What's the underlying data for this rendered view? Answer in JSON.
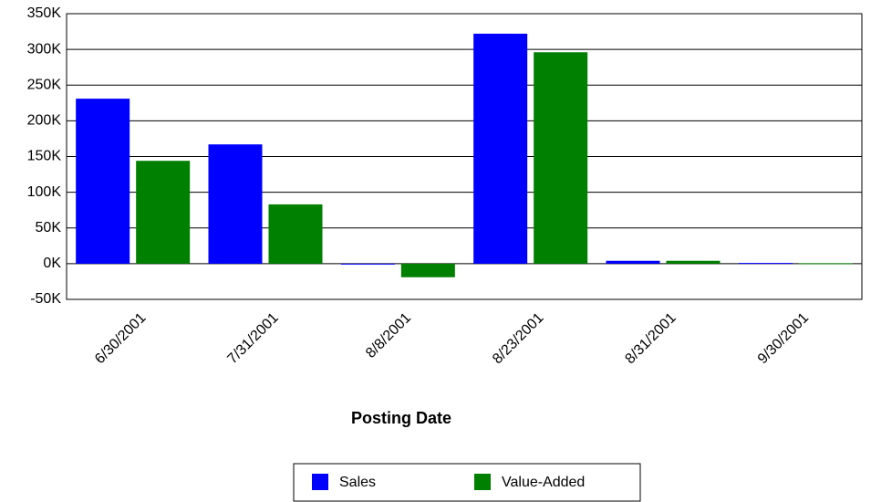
{
  "chart_data": {
    "type": "bar",
    "x_label": "Posting Date",
    "categories": [
      "6/30/2001",
      "7/31/2001",
      "8/8/2001",
      "8/23/2001",
      "8/31/2001",
      "9/30/2001"
    ],
    "series": [
      {
        "name": "Sales",
        "color": "#0000ff",
        "values": [
          231000,
          167000,
          0,
          322000,
          4000,
          1000
        ]
      },
      {
        "name": "Value-Added",
        "color": "#008000",
        "values": [
          144000,
          83000,
          -19000,
          296000,
          4000,
          500
        ]
      }
    ],
    "ylim": [
      -50000,
      350000
    ],
    "yticks": [
      {
        "value": -50000,
        "label": "-50K"
      },
      {
        "value": 0,
        "label": "0K"
      },
      {
        "value": 50000,
        "label": "50K"
      },
      {
        "value": 100000,
        "label": "100K"
      },
      {
        "value": 150000,
        "label": "150K"
      },
      {
        "value": 200000,
        "label": "200K"
      },
      {
        "value": 250000,
        "label": "250K"
      },
      {
        "value": 300000,
        "label": "300K"
      },
      {
        "value": 350000,
        "label": "350K"
      }
    ],
    "grid": true,
    "legend": "bottom"
  }
}
